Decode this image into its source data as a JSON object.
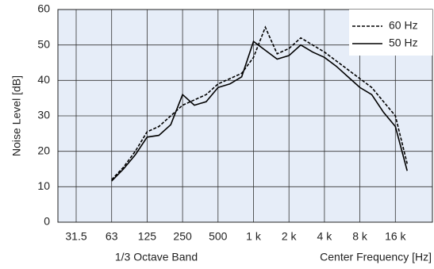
{
  "chart_data": {
    "type": "line",
    "y_label": "Noise Level [dB]",
    "x_label": "1/3 Octave Band",
    "x_label_right": "Center Frequency [Hz]",
    "categories": [
      "31.5",
      null,
      null,
      "63",
      null,
      null,
      "125",
      null,
      null,
      "250",
      null,
      null,
      "500",
      null,
      null,
      "1 k",
      null,
      null,
      "2 k",
      null,
      null,
      "4 k",
      null,
      null,
      "8 k",
      null,
      null,
      "16 k",
      null,
      null
    ],
    "series": [
      {
        "name": "60 Hz",
        "color": "#000000",
        "style": "dashed",
        "values": [
          null,
          null,
          null,
          12,
          15.5,
          20,
          25.5,
          27,
          30,
          33,
          34.5,
          36,
          39,
          40.5,
          42,
          46.5,
          55,
          47.5,
          49,
          52,
          50,
          48,
          45.5,
          43,
          40.5,
          38,
          34,
          30,
          16.5,
          null
        ]
      },
      {
        "name": "50 Hz",
        "color": "#000000",
        "style": "solid",
        "values": [
          null,
          null,
          null,
          11.6,
          15,
          19,
          24,
          24.5,
          27.5,
          36,
          33,
          34,
          38,
          39,
          41,
          51,
          48.5,
          46,
          47,
          50,
          48,
          46.5,
          44,
          41,
          38,
          36,
          31,
          27,
          14.5,
          null
        ]
      }
    ],
    "ylim": [
      0,
      60
    ],
    "yticks": [
      0,
      10,
      20,
      30,
      40,
      50,
      60
    ],
    "grid": true,
    "legend": "upper right",
    "background": "#e6edf8"
  }
}
